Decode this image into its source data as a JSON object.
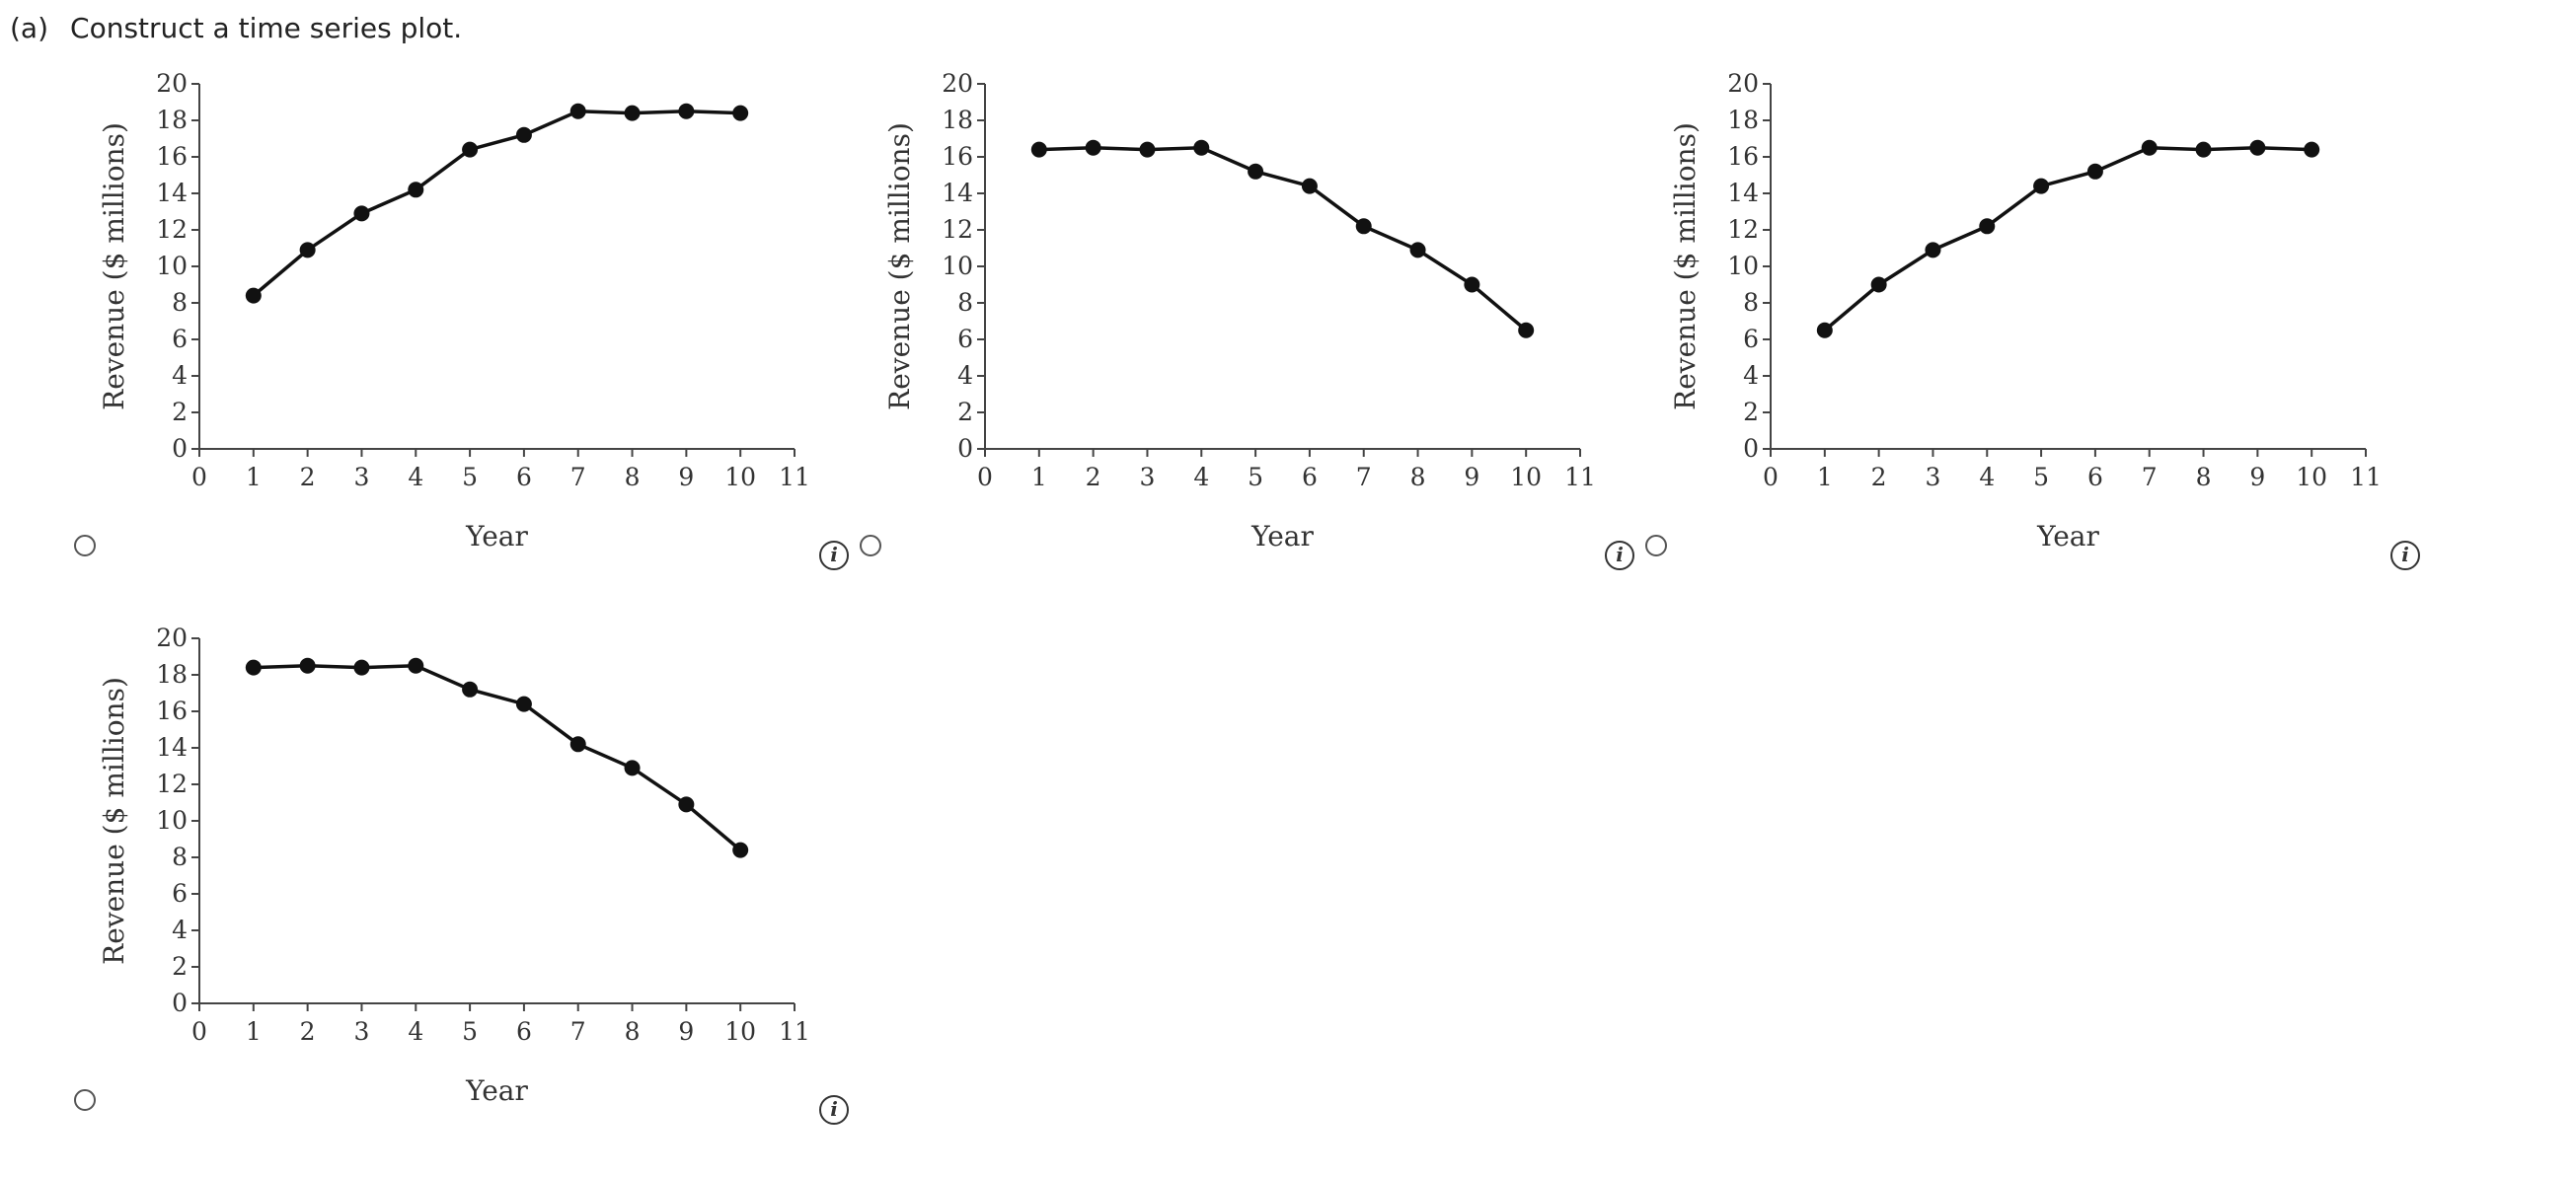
{
  "question": {
    "part": "(a)",
    "prompt": "Construct a time series plot."
  },
  "chart_data": [
    {
      "type": "line",
      "option": "A",
      "title": "",
      "xlabel": "Year",
      "ylabel": "Revenue ($ millions)",
      "xlim": [
        0,
        11
      ],
      "ylim": [
        0,
        20
      ],
      "xticks": [
        0,
        1,
        2,
        3,
        4,
        5,
        6,
        7,
        8,
        9,
        10,
        11
      ],
      "yticks": [
        0,
        2,
        4,
        6,
        8,
        10,
        12,
        14,
        16,
        18,
        20
      ],
      "x": [
        1,
        2,
        3,
        4,
        5,
        6,
        7,
        8,
        9,
        10
      ],
      "y": [
        8.4,
        10.9,
        12.9,
        14.2,
        16.4,
        17.2,
        18.5,
        18.4,
        18.5,
        18.4
      ],
      "grid": false
    },
    {
      "type": "line",
      "option": "B",
      "title": "",
      "xlabel": "Year",
      "ylabel": "Revenue ($ millions)",
      "xlim": [
        0,
        11
      ],
      "ylim": [
        0,
        20
      ],
      "xticks": [
        0,
        1,
        2,
        3,
        4,
        5,
        6,
        7,
        8,
        9,
        10,
        11
      ],
      "yticks": [
        0,
        2,
        4,
        6,
        8,
        10,
        12,
        14,
        16,
        18,
        20
      ],
      "x": [
        1,
        2,
        3,
        4,
        5,
        6,
        7,
        8,
        9,
        10
      ],
      "y": [
        16.4,
        16.5,
        16.4,
        16.5,
        15.2,
        14.4,
        12.2,
        10.9,
        9.0,
        6.5
      ],
      "grid": false
    },
    {
      "type": "line",
      "option": "C",
      "title": "",
      "xlabel": "Year",
      "ylabel": "Revenue ($ millions)",
      "xlim": [
        0,
        11
      ],
      "ylim": [
        0,
        20
      ],
      "xticks": [
        0,
        1,
        2,
        3,
        4,
        5,
        6,
        7,
        8,
        9,
        10,
        11
      ],
      "yticks": [
        0,
        2,
        4,
        6,
        8,
        10,
        12,
        14,
        16,
        18,
        20
      ],
      "x": [
        1,
        2,
        3,
        4,
        5,
        6,
        7,
        8,
        9,
        10
      ],
      "y": [
        6.5,
        9.0,
        10.9,
        12.2,
        14.4,
        15.2,
        16.5,
        16.4,
        16.5,
        16.4
      ],
      "grid": false
    },
    {
      "type": "line",
      "option": "D",
      "title": "",
      "xlabel": "Year",
      "ylabel": "Revenue ($ millions)",
      "xlim": [
        0,
        11
      ],
      "ylim": [
        0,
        20
      ],
      "xticks": [
        0,
        1,
        2,
        3,
        4,
        5,
        6,
        7,
        8,
        9,
        10,
        11
      ],
      "yticks": [
        0,
        2,
        4,
        6,
        8,
        10,
        12,
        14,
        16,
        18,
        20
      ],
      "x": [
        1,
        2,
        3,
        4,
        5,
        6,
        7,
        8,
        9,
        10
      ],
      "y": [
        18.4,
        18.5,
        18.4,
        18.5,
        17.2,
        16.4,
        14.2,
        12.9,
        10.9,
        8.4
      ],
      "grid": false
    }
  ],
  "info_icon_glyph": "i"
}
